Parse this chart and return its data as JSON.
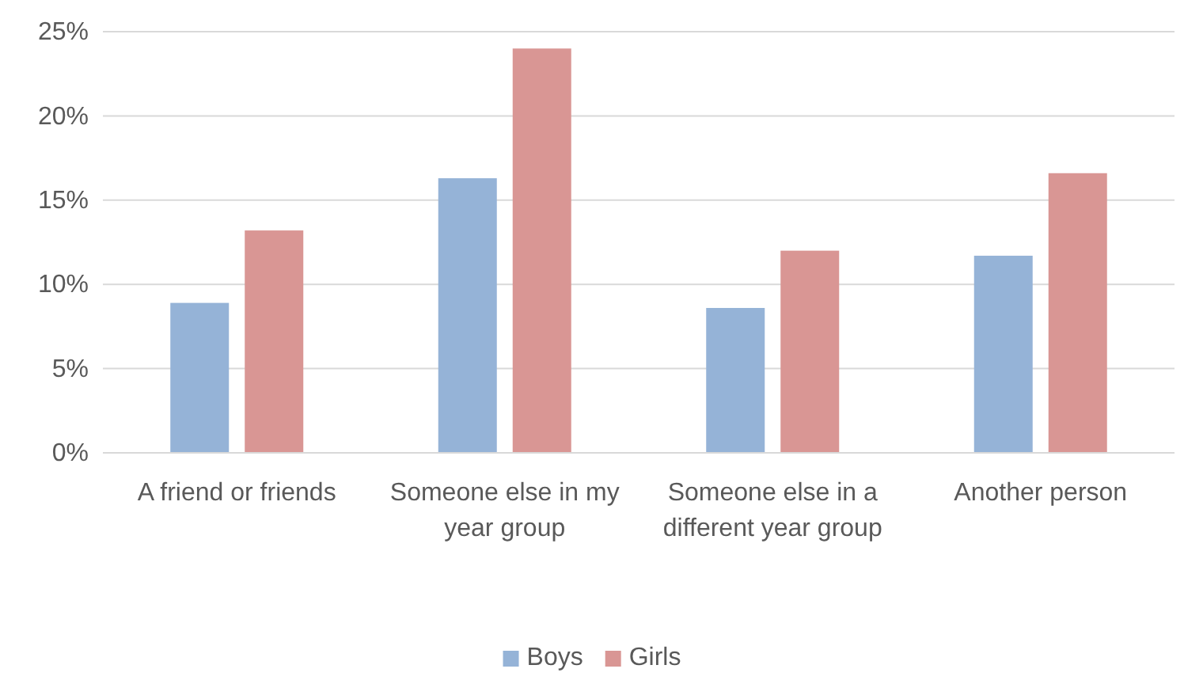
{
  "chart_data": {
    "type": "bar",
    "categories": [
      "A friend or friends",
      "Someone else in my year group",
      "Someone else in a different year group",
      "Another person"
    ],
    "series": [
      {
        "name": "Boys",
        "color": "#95b3d7",
        "values": [
          8.9,
          16.3,
          8.6,
          11.7
        ]
      },
      {
        "name": "Girls",
        "color": "#d99694",
        "values": [
          13.2,
          24.0,
          12.0,
          16.6
        ]
      }
    ],
    "ylim": [
      0,
      25
    ],
    "yticks": [
      {
        "value": 0,
        "label": "0%"
      },
      {
        "value": 5,
        "label": "5%"
      },
      {
        "value": 10,
        "label": "10%"
      },
      {
        "value": 15,
        "label": "15%"
      },
      {
        "value": 20,
        "label": "20%"
      },
      {
        "value": 25,
        "label": "25%"
      }
    ],
    "grid": "y",
    "legend": "bottom"
  }
}
